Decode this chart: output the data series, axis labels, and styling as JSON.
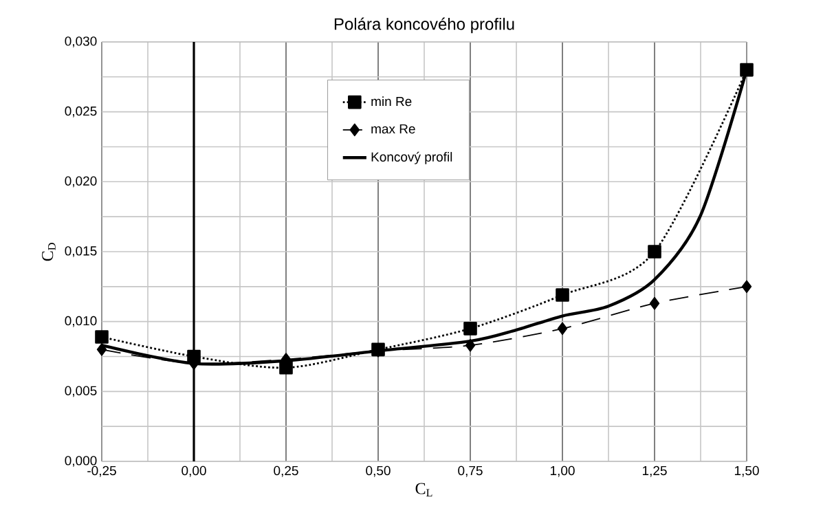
{
  "chart_data": {
    "type": "line",
    "title": "Polára koncového profilu",
    "xlabel": "C$_{L}$",
    "ylabel": "C$_{D}$",
    "x": [
      -0.25,
      0,
      0.25,
      0.5,
      0.75,
      1.0,
      1.25,
      1.5
    ],
    "series": [
      {
        "name": "min Re",
        "color": "#000000",
        "marker": "square",
        "line_style": "dotted",
        "values": [
          0.0089,
          0.0075,
          0.0067,
          0.008,
          0.0095,
          0.0119,
          0.015,
          0.028
        ]
      },
      {
        "name": "max Re",
        "color": "#000000",
        "marker": "diamond",
        "line_style": "dashed",
        "values": [
          0.008,
          0.007,
          0.0073,
          0.0079,
          0.0083,
          0.0095,
          0.0113,
          0.0125
        ]
      },
      {
        "name": "Koncový profil",
        "color": "#000000",
        "marker": "none",
        "line_style": "solid",
        "x": [
          -0.25,
          0,
          0.25,
          0.5,
          0.75,
          0.875,
          1.0,
          1.125,
          1.25,
          1.375,
          1.5
        ],
        "values": [
          0.0083,
          0.007,
          0.0072,
          0.0079,
          0.0086,
          0.0094,
          0.0104,
          0.0111,
          0.013,
          0.0176,
          0.028
        ]
      }
    ],
    "xlim": [
      -0.25,
      1.5
    ],
    "ylim": [
      0,
      0.03
    ],
    "xticks": [
      {
        "value": -0.25,
        "label": "-0,25"
      },
      {
        "value": 0,
        "label": "0,00"
      },
      {
        "value": 0.25,
        "label": "0,25"
      },
      {
        "value": 0.5,
        "label": "0,50"
      },
      {
        "value": 0.75,
        "label": "0,75"
      },
      {
        "value": 1.0,
        "label": "1,00"
      },
      {
        "value": 1.25,
        "label": "1,25"
      },
      {
        "value": 1.5,
        "label": "1,50"
      }
    ],
    "yticks": [
      {
        "value": 0,
        "label": "0,000"
      },
      {
        "value": 0.005,
        "label": "0,005"
      },
      {
        "value": 0.01,
        "label": "0,010"
      },
      {
        "value": 0.015,
        "label": "0,015"
      },
      {
        "value": 0.02,
        "label": "0,020"
      },
      {
        "value": 0.025,
        "label": "0,025"
      },
      {
        "value": 0.03,
        "label": "0,030"
      }
    ],
    "grid": true,
    "legend": "top"
  }
}
